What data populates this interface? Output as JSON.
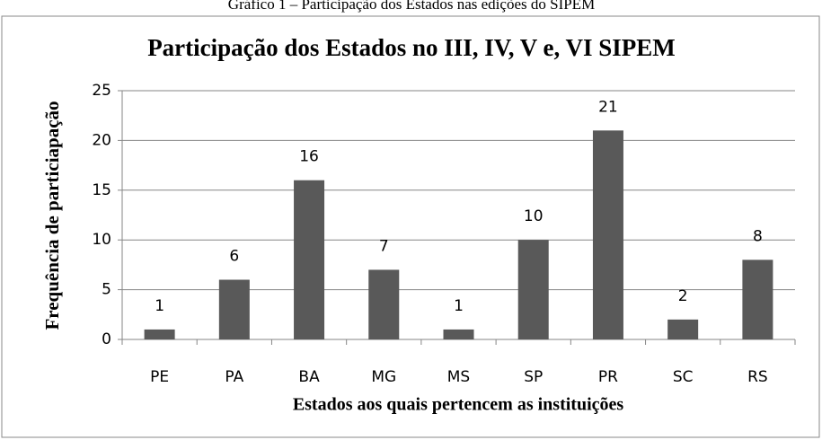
{
  "chart_data": {
    "type": "bar",
    "caption": "Gráfico 1 – Participação dos Estados nas edições do SIPEM",
    "title": "Participação dos Estados no III, IV, V e, VI SIPEM",
    "xlabel": "Estados aos quais pertencem as instituições",
    "ylabel": "Frequência de particiapação",
    "categories": [
      "PE",
      "PA",
      "BA",
      "MG",
      "MS",
      "SP",
      "PR",
      "SC",
      "RS"
    ],
    "values": [
      1,
      6,
      16,
      7,
      1,
      10,
      21,
      2,
      8
    ],
    "color": "#595959",
    "ylim": [
      0,
      25
    ],
    "yticks": [
      0,
      5,
      10,
      15,
      20,
      25
    ],
    "grid": true
  }
}
